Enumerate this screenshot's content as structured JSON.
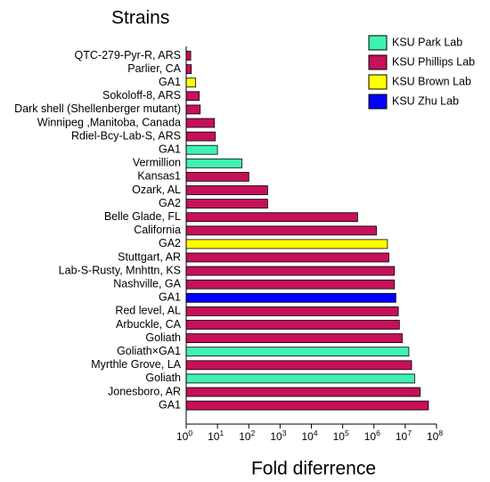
{
  "chart_data": {
    "type": "bar",
    "orientation": "horizontal",
    "title": "",
    "ylabel": "Strains",
    "xlabel": "Fold diferrence",
    "x_scale": "log10",
    "xlim": [
      1,
      100000000
    ],
    "x_ticks": [
      {
        "base": "10",
        "exp": "0"
      },
      {
        "base": "10",
        "exp": "1"
      },
      {
        "base": "10",
        "exp": "2"
      },
      {
        "base": "10",
        "exp": "3"
      },
      {
        "base": "10",
        "exp": "4"
      },
      {
        "base": "10",
        "exp": "5"
      },
      {
        "base": "10",
        "exp": "6"
      },
      {
        "base": "10",
        "exp": "7"
      },
      {
        "base": "10",
        "exp": "8"
      }
    ],
    "legend_position": "top-right",
    "series": [
      {
        "name": "KSU Park Lab",
        "color": "#3ff2b2"
      },
      {
        "name": "KSU Phillips Lab",
        "color": "#c6105a"
      },
      {
        "name": "KSU Brown Lab",
        "color": "#ffff00"
      },
      {
        "name": "KSU Zhu Lab",
        "color": "#0000ff"
      }
    ],
    "bars": [
      {
        "label": "QTC-279-Pyr-R, ARS",
        "value": 1.4,
        "series": "KSU Phillips Lab"
      },
      {
        "label": "Parlier, CA",
        "value": 1.45,
        "series": "KSU Phillips Lab"
      },
      {
        "label": "GA1",
        "value": 2.0,
        "series": "KSU Brown Lab"
      },
      {
        "label": "Sokoloff-8, ARS",
        "value": 2.6,
        "series": "KSU Phillips Lab"
      },
      {
        "label": "Dark shell (Shellenberger mutant)",
        "value": 2.8,
        "series": "KSU Phillips Lab"
      },
      {
        "label": "Winnipeg ,Manitoba, Canada",
        "value": 8,
        "series": "KSU Phillips Lab"
      },
      {
        "label": "Rdiel-Bcy-Lab-S, ARS",
        "value": 8.5,
        "series": "KSU Phillips Lab"
      },
      {
        "label": "GA1",
        "value": 10,
        "series": "KSU Park Lab"
      },
      {
        "label": "Vermillion",
        "value": 60,
        "series": "KSU Park Lab"
      },
      {
        "label": "Kansas1",
        "value": 100,
        "series": "KSU Phillips Lab"
      },
      {
        "label": "Ozark, AL",
        "value": 400,
        "series": "KSU Phillips Lab"
      },
      {
        "label": "GA2",
        "value": 400,
        "series": "KSU Phillips Lab"
      },
      {
        "label": "Belle Glade, FL",
        "value": 300000,
        "series": "KSU Phillips Lab"
      },
      {
        "label": "California",
        "value": 1200000,
        "series": "KSU Phillips Lab"
      },
      {
        "label": "GA2",
        "value": 2700000,
        "series": "KSU Brown Lab"
      },
      {
        "label": "Stuttgart, AR",
        "value": 3000000,
        "series": "KSU Phillips Lab"
      },
      {
        "label": "Lab-S-Rusty, Mnhttn, KS",
        "value": 4500000,
        "series": "KSU Phillips Lab"
      },
      {
        "label": "Nashville, GA",
        "value": 4500000,
        "series": "KSU Phillips Lab"
      },
      {
        "label": "GA1",
        "value": 5000000,
        "series": "KSU Zhu Lab"
      },
      {
        "label": "Red level, AL",
        "value": 6000000,
        "series": "KSU Phillips Lab"
      },
      {
        "label": "Arbuckle, CA",
        "value": 6500000,
        "series": "KSU Phillips Lab"
      },
      {
        "label": "Goliath",
        "value": 8000000,
        "series": "KSU Phillips Lab"
      },
      {
        "label": "Goliath×GA1",
        "value": 13000000,
        "series": "KSU Park Lab"
      },
      {
        "label": "Myrthle Grove, LA",
        "value": 16000000,
        "series": "KSU Phillips Lab"
      },
      {
        "label": "Goliath",
        "value": 20000000,
        "series": "KSU Park Lab"
      },
      {
        "label": "Jonesboro, AR",
        "value": 30000000,
        "series": "KSU Phillips Lab"
      },
      {
        "label": "GA1",
        "value": 55000000,
        "series": "KSU Phillips Lab"
      }
    ]
  }
}
